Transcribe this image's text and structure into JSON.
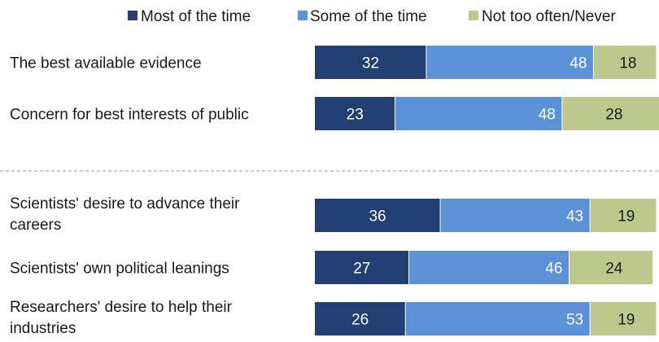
{
  "chart_data": {
    "type": "bar",
    "orientation": "horizontal",
    "stacked": true,
    "legend_position": "top-right",
    "grid": false,
    "xlim": [
      0,
      100
    ],
    "series": [
      {
        "name": "Most of the time",
        "color": "#213f73"
      },
      {
        "name": "Some of the time",
        "color": "#5b91d6"
      },
      {
        "name": "Not too often/Never",
        "color": "#bcc88c"
      }
    ],
    "groups": [
      {
        "categories": [
          {
            "label_lines": [
              "The best available evidence"
            ],
            "values": [
              32,
              48,
              18
            ]
          },
          {
            "label_lines": [
              "Concern for best interests of public"
            ],
            "values": [
              23,
              48,
              28
            ]
          }
        ]
      },
      {
        "categories": [
          {
            "label_lines": [
              "Scientists' desire to advance their",
              "careers"
            ],
            "values": [
              36,
              43,
              19
            ]
          },
          {
            "label_lines": [
              "Scientists'  own political leanings"
            ],
            "values": [
              27,
              46,
              24
            ]
          },
          {
            "label_lines": [
              "Researchers'  desire to help their",
              "industries"
            ],
            "values": [
              26,
              53,
              19
            ]
          }
        ]
      }
    ],
    "value_label_colors": [
      "#ffffff",
      "#ffffff",
      "#1a1a1a"
    ]
  }
}
